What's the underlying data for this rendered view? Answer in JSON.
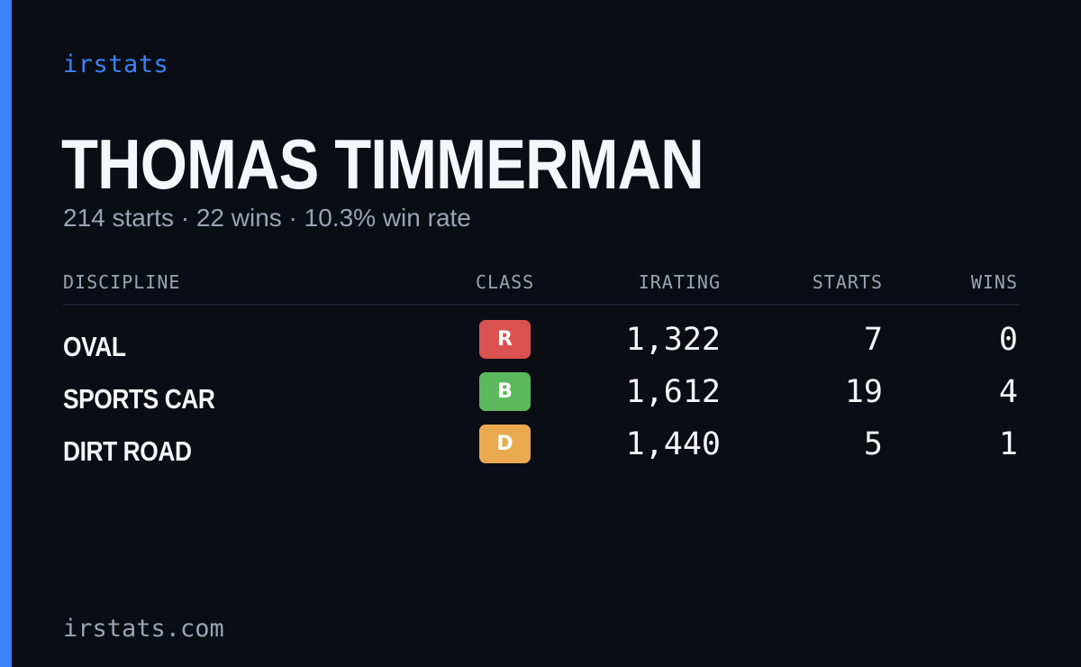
{
  "colors": {
    "accent": "#3b82f6",
    "brand": "#3b82f6",
    "background": "#0a0d14"
  },
  "brand": "irstats",
  "driver": {
    "name": "THOMAS TIMMERMAN",
    "summary": "214 starts · 22 wins · 10.3% win rate"
  },
  "table": {
    "headers": {
      "discipline": "DISCIPLINE",
      "class": "CLASS",
      "irating": "IRATING",
      "starts": "STARTS",
      "wins": "WINS"
    },
    "rows": [
      {
        "discipline": "OVAL",
        "class": "R",
        "class_color": "#d9524f",
        "irating": "1,322",
        "starts": "7",
        "wins": "0"
      },
      {
        "discipline": "SPORTS CAR",
        "class": "B",
        "class_color": "#5cb85c",
        "irating": "1,612",
        "starts": "19",
        "wins": "4"
      },
      {
        "discipline": "DIRT ROAD",
        "class": "D",
        "class_color": "#eaa94f",
        "irating": "1,440",
        "starts": "5",
        "wins": "1"
      }
    ]
  },
  "footer": "irstats.com"
}
